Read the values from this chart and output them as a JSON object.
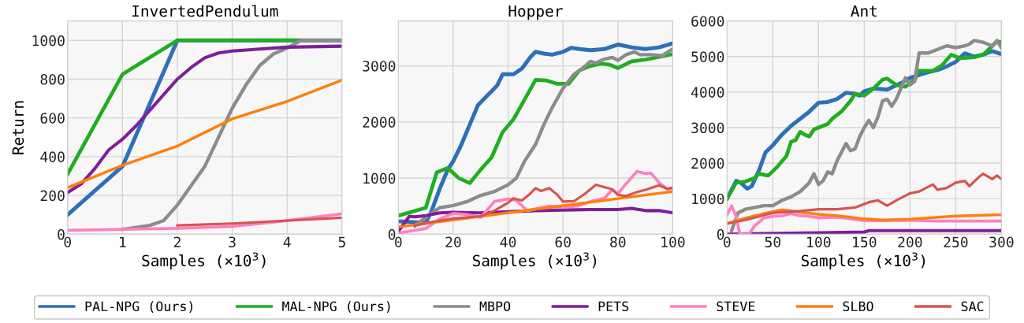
{
  "chart_data": [
    {
      "type": "line",
      "title": "InvertedPendulum",
      "xlabel": "Samples (×10$^{3}$)",
      "ylabel": "Return",
      "xlim": [
        0,
        5
      ],
      "xticks": [
        0,
        1,
        2,
        3,
        4,
        5
      ],
      "ylim": [
        0,
        1100
      ],
      "yticks": [
        0,
        200,
        400,
        600,
        800,
        1000
      ],
      "grid": true,
      "legend": "bottom",
      "series": [
        {
          "name": "PAL-NPG (Ours)",
          "color": "#2f6fba",
          "x": [
            0,
            1,
            2,
            5
          ],
          "values": [
            100,
            350,
            1000,
            1000
          ]
        },
        {
          "name": "MAL-NPG (Ours)",
          "color": "#1fae1f",
          "x": [
            0,
            1,
            2,
            5
          ],
          "values": [
            310,
            825,
            1000,
            1000
          ]
        },
        {
          "name": "MBPO",
          "color": "#8c8c8c",
          "x": [
            1,
            1.5,
            1.75,
            2,
            2.25,
            2.5,
            2.75,
            3,
            3.25,
            3.5,
            3.75,
            4,
            4.25,
            5
          ],
          "values": [
            25,
            45,
            70,
            150,
            250,
            350,
            500,
            650,
            770,
            870,
            930,
            960,
            1000,
            1000
          ]
        },
        {
          "name": "PETS",
          "color": "#7e1e9c",
          "x": [
            0,
            0.25,
            0.5,
            0.75,
            1,
            1.25,
            1.5,
            1.75,
            2,
            2.25,
            2.5,
            2.75,
            3,
            3.5,
            4,
            5
          ],
          "values": [
            215,
            260,
            340,
            435,
            490,
            560,
            640,
            720,
            800,
            860,
            910,
            935,
            945,
            955,
            965,
            970
          ]
        },
        {
          "name": "STEVE",
          "color": "#ff80c0",
          "x": [
            0,
            1,
            2,
            3,
            4,
            5
          ],
          "values": [
            20,
            25,
            30,
            40,
            70,
            105
          ]
        },
        {
          "name": "SLBO",
          "color": "#ff7f0e",
          "x": [
            0,
            1,
            2,
            3,
            4,
            5
          ],
          "values": [
            240,
            355,
            455,
            595,
            685,
            795
          ]
        },
        {
          "name": "SAC",
          "color": "#d9534f",
          "x": [
            2,
            3,
            4,
            5
          ],
          "values": [
            45,
            55,
            70,
            85
          ]
        }
      ]
    },
    {
      "type": "line",
      "title": "Hopper",
      "xlabel": "Samples (×10$^{3}$)",
      "xlim": [
        0,
        100
      ],
      "xticks": [
        0,
        20,
        40,
        60,
        80,
        100
      ],
      "ylim": [
        0,
        3800
      ],
      "yticks": [
        0,
        1000,
        2000,
        3000
      ],
      "grid": true,
      "series": [
        {
          "color": "#2f6fba",
          "x": [
            0,
            10,
            12,
            15,
            18,
            20,
            23,
            26,
            29,
            32,
            34,
            36,
            38,
            40,
            42,
            45,
            48,
            50,
            53,
            56,
            60,
            63,
            66,
            70,
            75,
            80,
            85,
            90,
            95,
            100
          ],
          "values": [
            230,
            200,
            400,
            800,
            1150,
            1300,
            1600,
            1950,
            2300,
            2450,
            2550,
            2650,
            2850,
            2850,
            2850,
            2950,
            3150,
            3250,
            3220,
            3200,
            3250,
            3320,
            3300,
            3280,
            3300,
            3380,
            3330,
            3300,
            3330,
            3400
          ]
        },
        {
          "color": "#1fae1f",
          "x": [
            0,
            10,
            14,
            18,
            22,
            26,
            30,
            34,
            38,
            42,
            46,
            50,
            54,
            58,
            62,
            66,
            70,
            74,
            77,
            80,
            85,
            90,
            95,
            100
          ],
          "values": [
            330,
            470,
            1100,
            1180,
            1000,
            910,
            1150,
            1370,
            1820,
            2050,
            2400,
            2750,
            2740,
            2680,
            2680,
            2920,
            3000,
            3040,
            3020,
            2960,
            3080,
            3110,
            3160,
            3210
          ]
        },
        {
          "color": "#8c8c8c",
          "x": [
            6,
            10,
            15,
            20,
            25,
            30,
            35,
            40,
            43,
            46,
            50,
            53,
            56,
            60,
            64,
            67,
            70,
            72,
            75,
            78,
            80,
            83,
            86,
            88,
            92,
            96,
            100
          ],
          "values": [
            150,
            300,
            470,
            510,
            580,
            690,
            760,
            880,
            1000,
            1300,
            1600,
            1950,
            2250,
            2600,
            2850,
            2950,
            3080,
            3050,
            3120,
            3150,
            3100,
            3200,
            3250,
            3200,
            3200,
            3180,
            3300
          ]
        },
        {
          "color": "#7e1e9c",
          "x": [
            0,
            4,
            6,
            10,
            15,
            20,
            30,
            40,
            50,
            60,
            70,
            80,
            85,
            90,
            95,
            100
          ],
          "values": [
            50,
            320,
            310,
            330,
            380,
            390,
            380,
            400,
            420,
            430,
            440,
            440,
            460,
            420,
            420,
            380
          ]
        },
        {
          "color": "#ff80c0",
          "x": [
            0,
            10,
            15,
            20,
            25,
            30,
            35,
            40,
            43,
            47,
            50,
            55,
            60,
            65,
            70,
            75,
            78,
            80,
            83,
            87,
            90,
            92,
            95,
            98,
            100
          ],
          "values": [
            20,
            100,
            270,
            370,
            350,
            300,
            580,
            630,
            600,
            420,
            450,
            500,
            480,
            500,
            580,
            640,
            790,
            720,
            900,
            1120,
            1080,
            1090,
            920,
            800,
            820
          ]
        },
        {
          "color": "#ff7f0e",
          "x": [
            0,
            100
          ],
          "values": [
            130,
            760
          ]
        },
        {
          "color": "#d9534f",
          "x": [
            6,
            10,
            20,
            30,
            35,
            40,
            42,
            45,
            48,
            50,
            52,
            55,
            58,
            60,
            64,
            68,
            72,
            75,
            78,
            80,
            83,
            87,
            90,
            95,
            98,
            100
          ],
          "values": [
            150,
            200,
            280,
            320,
            420,
            560,
            640,
            600,
            720,
            820,
            770,
            820,
            700,
            580,
            590,
            720,
            880,
            840,
            800,
            700,
            680,
            750,
            790,
            870,
            810,
            830
          ]
        }
      ]
    },
    {
      "type": "line",
      "title": "Ant",
      "xlabel": "Samples (×10$^{3}$)",
      "xlim": [
        0,
        300
      ],
      "xticks": [
        0,
        50,
        100,
        150,
        200,
        250,
        300
      ],
      "ylim": [
        0,
        6000
      ],
      "yticks": [
        0,
        1000,
        2000,
        3000,
        4000,
        5000,
        6000
      ],
      "grid": true,
      "series": [
        {
          "color": "#2f6fba",
          "x": [
            0,
            10,
            15,
            22,
            27,
            35,
            42,
            50,
            60,
            70,
            80,
            90,
            100,
            110,
            120,
            130,
            140,
            145,
            150,
            160,
            170,
            175,
            190,
            200,
            210,
            220,
            230,
            240,
            250,
            260,
            270,
            280,
            290,
            300
          ],
          "values": [
            1000,
            1500,
            1450,
            1280,
            1350,
            1800,
            2300,
            2500,
            2800,
            3050,
            3250,
            3450,
            3700,
            3720,
            3800,
            3980,
            3950,
            3900,
            4020,
            4100,
            4080,
            4070,
            4250,
            4400,
            4480,
            4560,
            4620,
            4720,
            4850,
            5090,
            5000,
            5050,
            5150,
            5070
          ]
        },
        {
          "color": "#1fae1f",
          "x": [
            0,
            10,
            20,
            30,
            35,
            45,
            55,
            65,
            70,
            75,
            80,
            85,
            90,
            95,
            100,
            110,
            115,
            125,
            135,
            140,
            150,
            160,
            170,
            175,
            185,
            195,
            205,
            210,
            225,
            235,
            245,
            255,
            270,
            280,
            290,
            295,
            300
          ],
          "values": [
            1000,
            1450,
            1480,
            1580,
            1700,
            1650,
            1900,
            2200,
            2600,
            2650,
            2880,
            2800,
            2750,
            2950,
            3000,
            3100,
            3250,
            3450,
            3750,
            3950,
            3900,
            4100,
            4350,
            4380,
            4200,
            4150,
            4350,
            4600,
            4600,
            4750,
            5050,
            4950,
            4980,
            5050,
            5300,
            5430,
            5400
          ]
        },
        {
          "color": "#8c8c8c",
          "x": [
            5,
            12,
            20,
            30,
            40,
            50,
            60,
            70,
            80,
            90,
            95,
            100,
            105,
            110,
            115,
            120,
            125,
            130,
            135,
            140,
            145,
            150,
            155,
            160,
            165,
            170,
            175,
            180,
            185,
            195,
            200,
            205,
            210,
            220,
            230,
            240,
            250,
            260,
            265,
            270,
            280,
            290,
            295,
            300
          ],
          "values": [
            100,
            600,
            700,
            750,
            800,
            800,
            950,
            1050,
            1200,
            1450,
            1700,
            1400,
            1500,
            1750,
            1700,
            2050,
            2300,
            2550,
            2350,
            2400,
            2750,
            3000,
            3200,
            3000,
            3300,
            3750,
            3800,
            3600,
            3800,
            4400,
            4200,
            4300,
            5100,
            5100,
            5200,
            5300,
            5250,
            5300,
            5350,
            5450,
            5400,
            5300,
            5450,
            5250
          ]
        },
        {
          "color": "#7e1e9c",
          "x": [
            0,
            50,
            100,
            150,
            155,
            300
          ],
          "values": [
            0,
            20,
            40,
            60,
            100,
            100
          ]
        },
        {
          "color": "#ff80c0",
          "x": [
            0,
            5,
            10,
            14,
            24,
            30,
            40,
            50,
            60,
            70,
            80,
            90,
            100,
            120,
            130,
            150,
            170,
            200,
            230,
            300
          ],
          "values": [
            550,
            800,
            500,
            0,
            0,
            230,
            450,
            500,
            520,
            580,
            520,
            500,
            460,
            480,
            450,
            380,
            380,
            390,
            370,
            370
          ]
        },
        {
          "color": "#ff7f0e",
          "x": [
            0,
            20,
            40,
            60,
            80,
            100,
            120,
            150,
            170,
            200,
            250,
            300
          ],
          "values": [
            300,
            450,
            580,
            690,
            620,
            560,
            520,
            430,
            400,
            420,
            510,
            550
          ]
        },
        {
          "color": "#d9534f",
          "x": [
            0,
            20,
            50,
            80,
            100,
            120,
            140,
            155,
            165,
            175,
            185,
            200,
            210,
            225,
            230,
            240,
            250,
            260,
            265,
            275,
            280,
            290,
            295,
            300
          ],
          "values": [
            300,
            400,
            600,
            650,
            700,
            700,
            750,
            900,
            950,
            800,
            950,
            1150,
            1200,
            1400,
            1250,
            1300,
            1450,
            1500,
            1350,
            1600,
            1700,
            1550,
            1650,
            1550
          ]
        }
      ]
    }
  ]
}
